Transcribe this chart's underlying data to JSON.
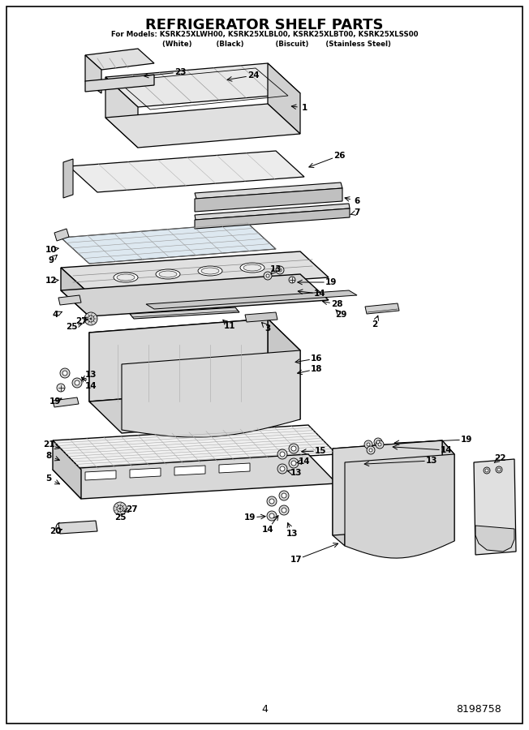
{
  "title": "REFRIGERATOR SHELF PARTS",
  "subtitle_line1": "For Models: KSRK25XLWH00, KSRK25XLBL00, KSRK25XLBT00, KSRK25XLSS00",
  "subtitle_line2_parts": [
    "(White)",
    "(Black)",
    "(Biscuit)",
    "(Stainless Steel)"
  ],
  "page_number": "4",
  "doc_number": "8198758",
  "bg_color": "#ffffff",
  "border_color": "#000000",
  "text_color": "#000000",
  "fig_width": 6.52,
  "fig_height": 9.0,
  "dpi": 100
}
